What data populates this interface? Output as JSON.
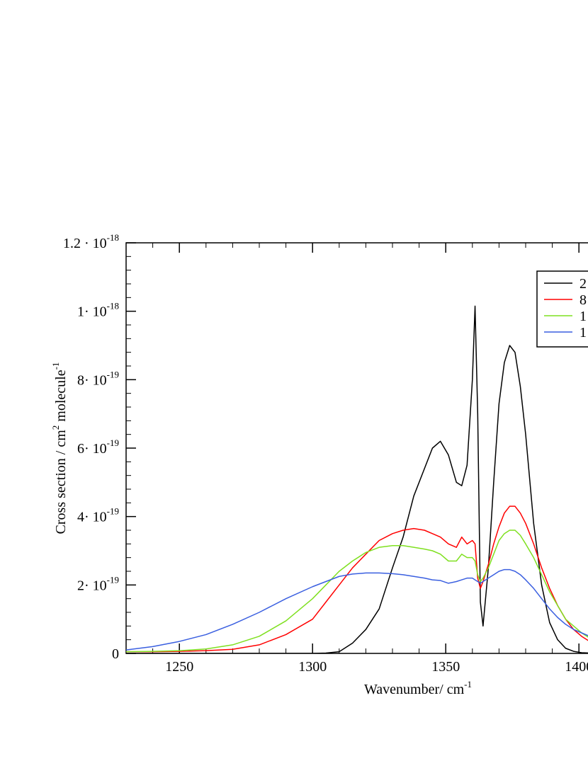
{
  "chart_data": {
    "type": "line",
    "xlabel": {
      "text": "Wavenumber/ cm",
      "exponent": "-1"
    },
    "ylabel": {
      "text": "Cross section / cm",
      "exponent": "2",
      "text2": " molecule",
      "exponent2": "-1"
    },
    "x": [
      1230,
      1240,
      1250,
      1260,
      1270,
      1280,
      1290,
      1300,
      1305,
      1310,
      1315,
      1320,
      1325,
      1330,
      1334,
      1338,
      1342,
      1345,
      1348,
      1351,
      1354,
      1356,
      1358,
      1360,
      1361,
      1362,
      1363,
      1364,
      1366,
      1368,
      1370,
      1372,
      1374,
      1376,
      1378,
      1380,
      1383,
      1386,
      1389,
      1392,
      1395,
      1398,
      1401,
      1404
    ],
    "series": [
      {
        "name": "2",
        "color": "#000000",
        "values": [
          0,
          0,
          0,
          0,
          0,
          0,
          0,
          0,
          1e-21,
          5e-21,
          3e-20,
          7e-20,
          1.3e-19,
          2.5e-19,
          3.4e-19,
          4.6e-19,
          5.4e-19,
          6e-19,
          6.2e-19,
          5.8e-19,
          5e-19,
          4.9e-19,
          5.5e-19,
          8e-19,
          1.015e-18,
          7e-19,
          1.5e-19,
          8e-20,
          2.5e-19,
          5e-19,
          7.3e-19,
          8.5e-19,
          9e-19,
          8.8e-19,
          7.8e-19,
          6.4e-19,
          3.8e-19,
          2e-19,
          9e-20,
          4e-20,
          1.5e-20,
          6e-21,
          2e-21,
          1e-21
        ]
      },
      {
        "name": "8",
        "color": "#ff0000",
        "values": [
          5e-21,
          5e-21,
          6e-21,
          8e-21,
          1.2e-20,
          2.5e-20,
          5.5e-20,
          1e-19,
          1.5e-19,
          2e-19,
          2.5e-19,
          2.9e-19,
          3.3e-19,
          3.5e-19,
          3.6e-19,
          3.65e-19,
          3.6e-19,
          3.5e-19,
          3.4e-19,
          3.2e-19,
          3.1e-19,
          3.4e-19,
          3.2e-19,
          3.3e-19,
          3.2e-19,
          2.2e-19,
          1.9e-19,
          2.1e-19,
          2.6e-19,
          3.2e-19,
          3.7e-19,
          4.1e-19,
          4.3e-19,
          4.3e-19,
          4.1e-19,
          3.8e-19,
          3.2e-19,
          2.5e-19,
          1.9e-19,
          1.4e-19,
          1e-19,
          7e-20,
          5e-20,
          3.5e-20
        ]
      },
      {
        "name": "1",
        "color": "#7fe020",
        "values": [
          5e-21,
          6e-21,
          8e-21,
          1.3e-20,
          2.5e-20,
          5e-20,
          9.5e-20,
          1.6e-19,
          2e-19,
          2.4e-19,
          2.7e-19,
          2.95e-19,
          3.1e-19,
          3.15e-19,
          3.15e-19,
          3.1e-19,
          3.05e-19,
          3e-19,
          2.9e-19,
          2.7e-19,
          2.7e-19,
          2.9e-19,
          2.8e-19,
          2.8e-19,
          2.7e-19,
          2.3e-19,
          2.1e-19,
          2.2e-19,
          2.5e-19,
          2.9e-19,
          3.3e-19,
          3.5e-19,
          3.6e-19,
          3.6e-19,
          3.45e-19,
          3.2e-19,
          2.8e-19,
          2.3e-19,
          1.8e-19,
          1.4e-19,
          1e-19,
          8e-20,
          6e-20,
          4.5e-20
        ]
      },
      {
        "name": "1",
        "color": "#3a5fe0",
        "values": [
          1e-20,
          2e-20,
          3.5e-20,
          5.5e-20,
          8.5e-20,
          1.2e-19,
          1.6e-19,
          1.95e-19,
          2.1e-19,
          2.25e-19,
          2.32e-19,
          2.35e-19,
          2.35e-19,
          2.33e-19,
          2.3e-19,
          2.25e-19,
          2.2e-19,
          2.15e-19,
          2.13e-19,
          2.05e-19,
          2.1e-19,
          2.15e-19,
          2.2e-19,
          2.2e-19,
          2.15e-19,
          2.1e-19,
          2.05e-19,
          2.1e-19,
          2.2e-19,
          2.3e-19,
          2.4e-19,
          2.45e-19,
          2.45e-19,
          2.4e-19,
          2.3e-19,
          2.15e-19,
          1.9e-19,
          1.6e-19,
          1.3e-19,
          1.05e-19,
          8.5e-20,
          7e-20,
          6e-20,
          5e-20
        ]
      }
    ],
    "xlim": [
      1230,
      1450
    ],
    "xticks": [
      1250,
      1300,
      1350,
      1400
    ],
    "ylim": [
      0,
      1.2e-18
    ],
    "yticks": [
      0,
      {
        "value": 2e-19,
        "label": "2· 10",
        "exponent": "-19"
      },
      {
        "value": 4e-19,
        "label": "4· 10",
        "exponent": "-19"
      },
      {
        "value": 6e-19,
        "label": "6· 10",
        "exponent": "-19"
      },
      {
        "value": 8e-19,
        "label": "8· 10",
        "exponent": "-19"
      },
      {
        "value": 1e-18,
        "label": "1· 10",
        "exponent": "-18"
      },
      {
        "value": 1.2e-18,
        "label": "1.2 · 10",
        "exponent": "-18"
      }
    ],
    "legend": "upper right",
    "grid": false
  }
}
